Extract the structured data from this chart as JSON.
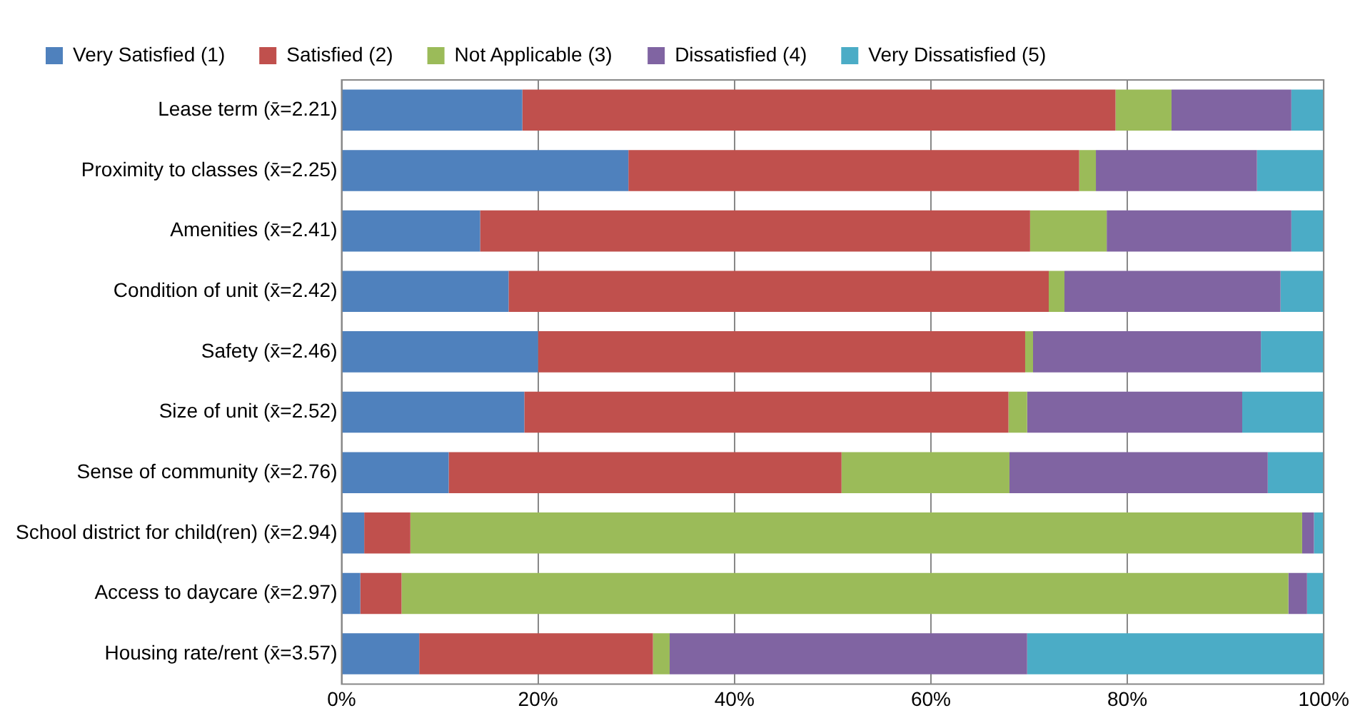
{
  "chart_data": {
    "type": "bar",
    "orientation": "horizontal",
    "stacked": true,
    "categories": [
      "Lease term (x̄=2.21)",
      "Proximity to classes (x̄=2.25)",
      "Amenities (x̄=2.41)",
      "Condition of unit (x̄=2.42)",
      "Safety (x̄=2.46)",
      "Size of unit (x̄=2.52)",
      "Sense of community (x̄=2.76)",
      "School district for child(ren) (x̄=2.94)",
      "Access to daycare (x̄=2.97)",
      "Housing rate/rent (x̄=3.57)"
    ],
    "series": [
      {
        "name": "Very Satisfied (1)",
        "color": "#4f81bd",
        "values": [
          18.4,
          29.2,
          14.1,
          17.0,
          20.0,
          18.6,
          10.9,
          2.3,
          1.9,
          7.9
        ]
      },
      {
        "name": "Satisfied (2)",
        "color": "#c0504d",
        "values": [
          60.4,
          45.9,
          56.0,
          55.0,
          49.6,
          49.3,
          40.0,
          4.7,
          4.2,
          23.8
        ]
      },
      {
        "name": "Not Applicable (3)",
        "color": "#9bbb59",
        "values": [
          5.7,
          1.7,
          7.8,
          1.6,
          0.8,
          1.9,
          17.1,
          90.8,
          90.3,
          1.7
        ]
      },
      {
        "name": "Dissatisfied (4)",
        "color": "#8064a2",
        "values": [
          12.2,
          16.4,
          18.8,
          22.0,
          23.2,
          21.9,
          26.3,
          1.2,
          1.9,
          36.4
        ]
      },
      {
        "name": "Very Dissatisfied (5)",
        "color": "#4bacc6",
        "values": [
          3.3,
          6.8,
          3.3,
          4.4,
          6.4,
          8.3,
          5.7,
          1.0,
          1.7,
          30.2
        ]
      }
    ],
    "xlim": [
      0,
      100
    ],
    "xticks": [
      {
        "value": 0,
        "label": "0%"
      },
      {
        "value": 20,
        "label": "20%"
      },
      {
        "value": 40,
        "label": "40%"
      },
      {
        "value": 60,
        "label": "60%"
      },
      {
        "value": 80,
        "label": "80%"
      },
      {
        "value": 100,
        "label": "100%"
      }
    ],
    "grid": "x",
    "legend": "top"
  }
}
